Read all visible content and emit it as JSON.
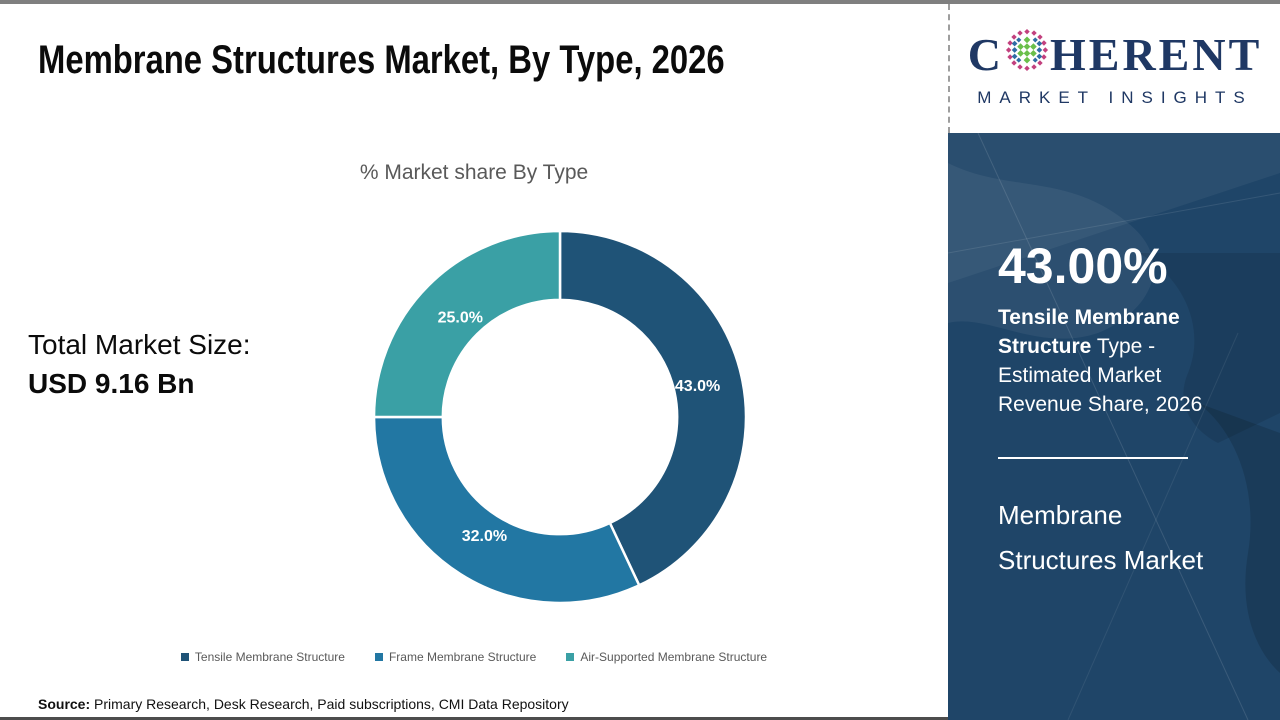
{
  "header": {
    "title": "Membrane Structures Market, By Type, 2026"
  },
  "logo": {
    "brand_prefix": "C",
    "brand_suffix": "HERENT",
    "tagline": "MARKET INSIGHTS",
    "navy": "#1f3864",
    "globe_icon": "dotted-globe"
  },
  "chart_data": {
    "type": "pie",
    "subtype": "donut",
    "title": "% Market share By Type",
    "categories": [
      "Tensile Membrane Structure",
      "Frame Membrane Structure",
      "Air-Supported Membrane Structure"
    ],
    "values": [
      43.0,
      32.0,
      25.0
    ],
    "data_labels": [
      "43.0%",
      "32.0%",
      "25.0%"
    ],
    "colors": [
      "#1f5377",
      "#2277a3",
      "#3aa0a5"
    ],
    "donut_hole_ratio": 0.63,
    "start_angle_deg": 0,
    "direction": "clockwise",
    "legend_position": "bottom",
    "label_color": "#ffffff"
  },
  "market_size": {
    "label": "Total Market Size:",
    "value": "USD 9.16 Bn"
  },
  "sidebar": {
    "stat_value": "43.00%",
    "stat_bold": "Tensile Membrane Structure",
    "stat_rest": " Type - Estimated Market Revenue Share, 2026",
    "product_name": "Membrane Structures Market",
    "background": "#1f4568"
  },
  "footer": {
    "source_label": "Source:",
    "source_text": " Primary Research, Desk Research, Paid subscriptions, CMI Data Repository"
  }
}
